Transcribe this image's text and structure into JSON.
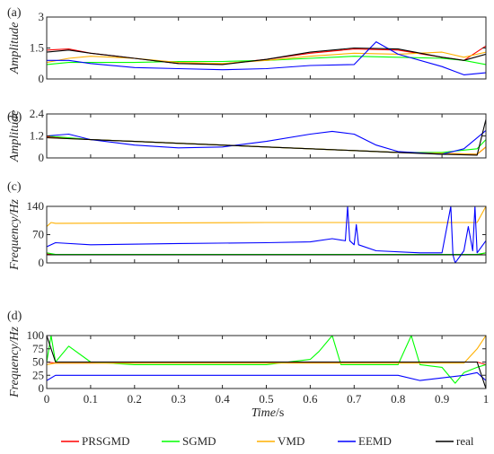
{
  "chart_data": {
    "type": "line",
    "xlabel_italic": "Time",
    "xlabel_unit": "/s",
    "x_ticks": [
      "0",
      "0.1",
      "0.2",
      "0.3",
      "0.4",
      "0.5",
      "0.6",
      "0.7",
      "0.8",
      "0.9",
      "1"
    ],
    "xlim": [
      0,
      1
    ],
    "legend": {
      "placement": "bottom",
      "entries": [
        {
          "name": "PRSGMD",
          "color": "#ff0000"
        },
        {
          "name": "SGMD",
          "color": "#00ff00"
        },
        {
          "name": "VMD",
          "color": "#ffb000"
        },
        {
          "name": "EEMD",
          "color": "#0000ff"
        },
        {
          "name": "real",
          "color": "#000000"
        }
      ]
    },
    "panels": [
      {
        "label": "(a)",
        "ylabel": "Amplitude",
        "ylim": [
          0,
          3
        ],
        "yticks": [
          0,
          1.5,
          3
        ],
        "ytick_labels": [
          "0",
          "1.5",
          "3"
        ],
        "series": {
          "real": {
            "x": [
              0,
              0.05,
              0.1,
              0.2,
              0.3,
              0.4,
              0.5,
              0.6,
              0.7,
              0.8,
              0.9,
              0.95,
              1
            ],
            "y": [
              1.3,
              1.4,
              1.25,
              1.0,
              0.75,
              0.7,
              0.95,
              1.3,
              1.5,
              1.45,
              1.05,
              0.9,
              1.2
            ]
          },
          "PRSGMD": {
            "x": [
              0,
              0.05,
              0.1,
              0.2,
              0.3,
              0.4,
              0.5,
              0.6,
              0.7,
              0.8,
              0.9,
              0.95,
              1
            ],
            "y": [
              1.4,
              1.45,
              1.25,
              1.0,
              0.75,
              0.72,
              0.95,
              1.25,
              1.45,
              1.4,
              1.05,
              0.9,
              1.6
            ]
          },
          "SGMD": {
            "x": [
              0,
              0.05,
              0.1,
              0.2,
              0.3,
              0.4,
              0.5,
              0.6,
              0.7,
              0.8,
              0.9,
              0.95,
              1
            ],
            "y": [
              0.7,
              0.8,
              0.8,
              0.8,
              0.85,
              0.85,
              0.9,
              1.0,
              1.1,
              1.05,
              1.0,
              0.9,
              0.7
            ]
          },
          "VMD": {
            "x": [
              0,
              0.05,
              0.1,
              0.2,
              0.3,
              0.4,
              0.5,
              0.6,
              0.7,
              0.8,
              0.9,
              0.95,
              1
            ],
            "y": [
              0.8,
              1.0,
              1.1,
              1.0,
              0.8,
              0.75,
              0.9,
              1.1,
              1.25,
              1.2,
              1.3,
              1.05,
              1.3
            ]
          },
          "EEMD": {
            "x": [
              0,
              0.05,
              0.1,
              0.2,
              0.3,
              0.4,
              0.5,
              0.6,
              0.7,
              0.75,
              0.8,
              0.9,
              0.95,
              1
            ],
            "y": [
              0.9,
              0.9,
              0.75,
              0.55,
              0.5,
              0.45,
              0.5,
              0.65,
              0.7,
              1.8,
              1.2,
              0.6,
              0.2,
              0.3
            ]
          }
        }
      },
      {
        "label": "(b)",
        "ylabel": "Amplitude",
        "ylim": [
          0,
          2.4
        ],
        "yticks": [
          0,
          1.2,
          2.4
        ],
        "ytick_labels": [
          "0",
          "1.2",
          "2.4"
        ],
        "series": {
          "real": {
            "x": [
              0,
              0.1,
              0.2,
              0.3,
              0.4,
              0.5,
              0.6,
              0.7,
              0.8,
              0.9,
              0.98,
              1
            ],
            "y": [
              1.1,
              1.0,
              0.9,
              0.8,
              0.7,
              0.6,
              0.5,
              0.4,
              0.3,
              0.2,
              0.15,
              2.1
            ]
          },
          "PRSGMD": {
            "x": [
              0,
              0.1,
              0.2,
              0.3,
              0.4,
              0.5,
              0.6,
              0.7,
              0.8,
              0.9,
              0.98,
              1
            ],
            "y": [
              1.15,
              1.0,
              0.9,
              0.8,
              0.7,
              0.6,
              0.5,
              0.4,
              0.3,
              0.25,
              0.2,
              0.6
            ]
          },
          "SGMD": {
            "x": [
              0,
              0.1,
              0.2,
              0.3,
              0.4,
              0.5,
              0.6,
              0.7,
              0.8,
              0.9,
              0.98,
              1
            ],
            "y": [
              1.2,
              1.0,
              0.9,
              0.8,
              0.7,
              0.6,
              0.5,
              0.4,
              0.3,
              0.3,
              0.5,
              1.0
            ]
          },
          "VMD": {
            "x": [
              0,
              0.1,
              0.2,
              0.3,
              0.4,
              0.5,
              0.6,
              0.7,
              0.8,
              0.9,
              0.98,
              1
            ],
            "y": [
              1.1,
              1.0,
              0.9,
              0.8,
              0.7,
              0.6,
              0.5,
              0.4,
              0.3,
              0.25,
              0.2,
              0.6
            ]
          },
          "EEMD": {
            "x": [
              0,
              0.05,
              0.1,
              0.2,
              0.3,
              0.4,
              0.5,
              0.6,
              0.65,
              0.7,
              0.75,
              0.8,
              0.9,
              0.95,
              1
            ],
            "y": [
              1.2,
              1.3,
              1.0,
              0.7,
              0.55,
              0.6,
              0.9,
              1.3,
              1.45,
              1.3,
              0.7,
              0.35,
              0.2,
              0.5,
              1.5
            ]
          }
        }
      },
      {
        "label": "(c)",
        "ylabel": "Frequency/Hz",
        "ylim": [
          0,
          140
        ],
        "yticks": [
          0,
          70,
          140
        ],
        "ytick_labels": [
          "0",
          "70",
          "140"
        ],
        "series": {
          "real": {
            "x": [
              0,
              1
            ],
            "y": [
              20,
              20
            ]
          },
          "PRSGMD": {
            "x": [
              0,
              0.02,
              0.5,
              0.98,
              1
            ],
            "y": [
              22,
              20,
              20,
              20,
              25
            ]
          },
          "SGMD": {
            "x": [
              0,
              0.02,
              0.5,
              0.98,
              1
            ],
            "y": [
              25,
              21,
              21,
              21,
              25
            ]
          },
          "VMD": {
            "x": [
              0,
              0.01,
              0.02,
              0.5,
              0.98,
              1
            ],
            "y": [
              90,
              100,
              98,
              100,
              100,
              140
            ]
          },
          "EEMD": {
            "x": [
              0,
              0.02,
              0.1,
              0.3,
              0.5,
              0.6,
              0.65,
              0.68,
              0.685,
              0.69,
              0.7,
              0.705,
              0.71,
              0.75,
              0.85,
              0.9,
              0.92,
              0.925,
              0.93,
              0.95,
              0.96,
              0.97,
              0.975,
              0.98,
              1
            ],
            "y": [
              40,
              50,
              45,
              48,
              50,
              52,
              60,
              55,
              140,
              55,
              45,
              95,
              45,
              30,
              25,
              25,
              140,
              20,
              0,
              30,
              90,
              30,
              140,
              25,
              55
            ]
          }
        }
      },
      {
        "label": "(d)",
        "ylabel": "Frequency/Hz",
        "ylim": [
          0,
          100
        ],
        "yticks": [
          0,
          25,
          50,
          75,
          100
        ],
        "ytick_labels": [
          "0",
          "25",
          "50",
          "75",
          "100"
        ],
        "series": {
          "real": {
            "x": [
              0,
              0.02,
              0.98,
              1
            ],
            "y": [
              100,
              50,
              50,
              0
            ]
          },
          "PRSGMD": {
            "x": [
              0,
              0.02,
              0.98,
              1
            ],
            "y": [
              50,
              48,
              50,
              45
            ]
          },
          "SGMD": {
            "x": [
              0,
              0.01,
              0.02,
              0.05,
              0.1,
              0.2,
              0.3,
              0.4,
              0.5,
              0.6,
              0.62,
              0.65,
              0.67,
              0.7,
              0.8,
              0.83,
              0.85,
              0.9,
              0.93,
              0.95,
              0.98,
              1
            ],
            "y": [
              50,
              100,
              50,
              80,
              50,
              45,
              45,
              45,
              45,
              55,
              70,
              100,
              45,
              45,
              45,
              100,
              45,
              40,
              10,
              30,
              40,
              45
            ]
          },
          "VMD": {
            "x": [
              0,
              0.02,
              0.5,
              0.95,
              0.98,
              1
            ],
            "y": [
              45,
              48,
              48,
              48,
              75,
              100
            ]
          },
          "EEMD": {
            "x": [
              0,
              0.02,
              0.1,
              0.3,
              0.5,
              0.7,
              0.8,
              0.85,
              0.9,
              0.95,
              0.98,
              1
            ],
            "y": [
              15,
              25,
              25,
              25,
              25,
              25,
              25,
              15,
              20,
              25,
              30,
              15
            ]
          }
        }
      }
    ]
  }
}
